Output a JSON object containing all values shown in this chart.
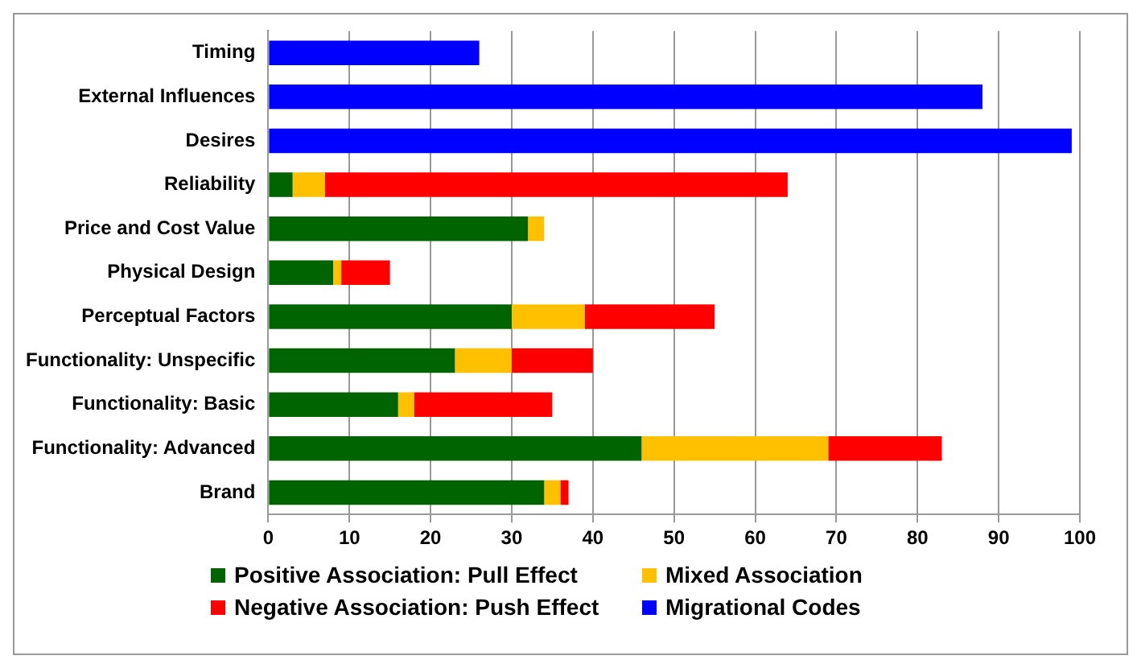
{
  "chart_data": {
    "type": "bar",
    "orientation": "horizontal",
    "stacked": true,
    "categories": [
      "Timing",
      "External Influences",
      "Desires",
      "Reliability",
      "Price and Cost Value",
      "Physical Design",
      "Perceptual Factors",
      "Functionality: Unspecific",
      "Functionality: Basic",
      "Functionality: Advanced",
      "Brand"
    ],
    "series": [
      {
        "name": "Positive Association: Pull Effect",
        "color": "#006400",
        "values": [
          null,
          null,
          null,
          3,
          32,
          8,
          30,
          23,
          16,
          46,
          34
        ]
      },
      {
        "name": "Mixed Association",
        "color": "#ffc000",
        "values": [
          null,
          null,
          null,
          4,
          2,
          1,
          9,
          7,
          2,
          23,
          2
        ]
      },
      {
        "name": "Negative Association: Push Effect",
        "color": "#ff0000",
        "values": [
          null,
          null,
          null,
          57,
          null,
          6,
          16,
          10,
          17,
          14,
          1
        ]
      },
      {
        "name": "Migrational Codes",
        "color": "#0000ff",
        "values": [
          26,
          88,
          99,
          null,
          null,
          null,
          null,
          null,
          null,
          null,
          null
        ]
      }
    ],
    "xlim": [
      0,
      100
    ],
    "xticks": [
      0,
      10,
      20,
      30,
      40,
      50,
      60,
      70,
      80,
      90,
      100
    ],
    "grid": "x",
    "legend": "bottom"
  }
}
